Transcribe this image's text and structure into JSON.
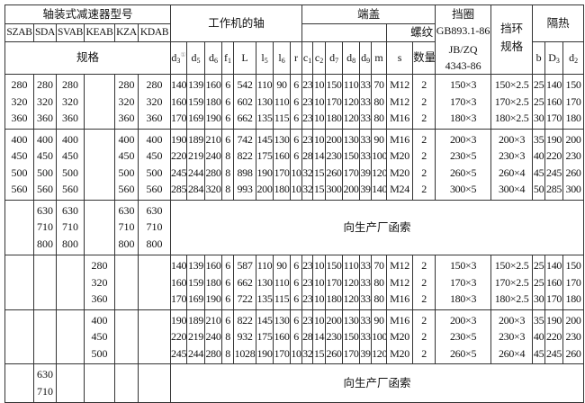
{
  "header": {
    "reducer_type_title": "轴装式减速器型号",
    "models": [
      "SZAB",
      "SDA",
      "SVAB",
      "KEAB",
      "KZA",
      "KDAB"
    ],
    "spec_label": "规格",
    "shaft_title": "工作机的轴",
    "end_cover_title": "端盖",
    "thread_label": "螺纹",
    "retainer_title": "挡圈",
    "retainer_std1": "GB893.1-86",
    "retainer_std2": "JB/ZQ",
    "retainer_std3": "4343-86",
    "ring_title_1": "挡环",
    "ring_title_2": "规格",
    "insulation_title": "隔热",
    "columns": [
      {
        "base": "d",
        "sub": "3",
        "sup": "①"
      },
      {
        "base": "d",
        "sub": "5"
      },
      {
        "base": "d",
        "sub": "6"
      },
      {
        "base": "f",
        "sub": "1"
      },
      {
        "base": "L",
        "sub": ""
      },
      {
        "base": "l",
        "sub": "5"
      },
      {
        "base": "l",
        "sub": "6"
      },
      {
        "base": "r",
        "sub": ""
      },
      {
        "base": "c",
        "sub": "1"
      },
      {
        "base": "c",
        "sub": "2"
      },
      {
        "base": "d",
        "sub": "7"
      },
      {
        "base": "d",
        "sub": "8"
      },
      {
        "base": "d",
        "sub": "9"
      },
      {
        "base": "m",
        "sub": ""
      },
      {
        "base": "s",
        "sub": ""
      },
      {
        "base": "数量",
        "sub": ""
      }
    ],
    "insulation_columns": [
      {
        "base": "b",
        "sub": ""
      },
      {
        "base": "D",
        "sub": "3"
      },
      {
        "base": "d",
        "sub": "2"
      }
    ]
  },
  "groups": [
    {
      "models": [
        [
          "280",
          "320",
          "360"
        ],
        [
          "280",
          "320",
          "360"
        ],
        [
          "280",
          "320",
          "360"
        ],
        [],
        [
          "280",
          "320",
          "360"
        ],
        [
          "280",
          "320",
          "360"
        ]
      ],
      "rows": [
        [
          "140",
          "139",
          "160",
          "6",
          "542",
          "110",
          "90",
          "6",
          "23",
          "10",
          "150",
          "110",
          "33",
          "70",
          "M12",
          "2",
          "150×3",
          "150×2.5",
          "25",
          "140",
          "150"
        ],
        [
          "160",
          "159",
          "180",
          "6",
          "602",
          "130",
          "110",
          "6",
          "23",
          "10",
          "170",
          "120",
          "33",
          "80",
          "M12",
          "2",
          "170×3",
          "170×2.5",
          "25",
          "160",
          "170"
        ],
        [
          "170",
          "169",
          "190",
          "6",
          "662",
          "135",
          "115",
          "6",
          "23",
          "10",
          "180",
          "120",
          "33",
          "80",
          "M16",
          "2",
          "180×3",
          "180×2.5",
          "30",
          "170",
          "180"
        ]
      ]
    },
    {
      "models": [
        [
          "400",
          "450",
          "500",
          "560"
        ],
        [
          "400",
          "450",
          "500",
          "560"
        ],
        [
          "400",
          "450",
          "500",
          "560"
        ],
        [],
        [
          "400",
          "450",
          "500",
          "560"
        ],
        [
          "400",
          "450",
          "500",
          "560"
        ]
      ],
      "rows": [
        [
          "190",
          "189",
          "210",
          "6",
          "742",
          "145",
          "130",
          "6",
          "23",
          "10",
          "200",
          "130",
          "33",
          "90",
          "M16",
          "2",
          "200×3",
          "200×3",
          "35",
          "190",
          "200"
        ],
        [
          "220",
          "219",
          "240",
          "8",
          "822",
          "175",
          "160",
          "6",
          "28",
          "14",
          "230",
          "150",
          "33",
          "100",
          "M20",
          "2",
          "230×5",
          "230×3",
          "40",
          "220",
          "230"
        ],
        [
          "245",
          "244",
          "280",
          "8",
          "898",
          "190",
          "170",
          "10",
          "32",
          "15",
          "260",
          "170",
          "39",
          "120",
          "M20",
          "2",
          "260×5",
          "260×4",
          "45",
          "245",
          "260"
        ],
        [
          "285",
          "284",
          "320",
          "8",
          "993",
          "200",
          "180",
          "10",
          "32",
          "15",
          "300",
          "200",
          "39",
          "140",
          "M24",
          "2",
          "300×5",
          "300×4",
          "50",
          "285",
          "300"
        ]
      ]
    },
    {
      "models": [
        [],
        [
          "630",
          "710",
          "800"
        ],
        [
          "630",
          "710",
          "800"
        ],
        [],
        [
          "630",
          "710",
          "800"
        ],
        [
          "630",
          "710",
          "800"
        ]
      ],
      "note": "向生产厂函索"
    },
    {
      "models": [
        [],
        [],
        [],
        [
          "280",
          "320",
          "360"
        ],
        [],
        []
      ],
      "rows": [
        [
          "140",
          "139",
          "160",
          "6",
          "587",
          "110",
          "90",
          "6",
          "23",
          "10",
          "150",
          "110",
          "33",
          "70",
          "M12",
          "2",
          "150×3",
          "150×2.5",
          "25",
          "140",
          "150"
        ],
        [
          "160",
          "159",
          "180",
          "6",
          "662",
          "130",
          "110",
          "6",
          "23",
          "10",
          "170",
          "120",
          "33",
          "80",
          "M12",
          "2",
          "170×3",
          "170×2.5",
          "25",
          "160",
          "170"
        ],
        [
          "170",
          "169",
          "190",
          "6",
          "722",
          "135",
          "115",
          "6",
          "23",
          "10",
          "180",
          "120",
          "33",
          "80",
          "M16",
          "2",
          "180×3",
          "180×2.5",
          "30",
          "170",
          "180"
        ]
      ]
    },
    {
      "models": [
        [],
        [],
        [],
        [
          "400",
          "450",
          "500"
        ],
        [],
        []
      ],
      "rows": [
        [
          "190",
          "189",
          "210",
          "6",
          "822",
          "145",
          "130",
          "6",
          "23",
          "10",
          "200",
          "130",
          "33",
          "90",
          "M16",
          "2",
          "200×3",
          "200×3",
          "35",
          "190",
          "200"
        ],
        [
          "220",
          "219",
          "240",
          "8",
          "932",
          "175",
          "160",
          "6",
          "28",
          "14",
          "230",
          "150",
          "33",
          "100",
          "M20",
          "2",
          "230×5",
          "230×3",
          "40",
          "220",
          "230"
        ],
        [
          "245",
          "244",
          "280",
          "8",
          "1028",
          "190",
          "170",
          "10",
          "32",
          "15",
          "260",
          "170",
          "39",
          "120",
          "M20",
          "2",
          "260×5",
          "260×4",
          "45",
          "245",
          "260"
        ]
      ]
    },
    {
      "models": [
        [],
        [
          "630",
          "710"
        ],
        [],
        [],
        [],
        []
      ],
      "note": "向生产厂函索"
    }
  ]
}
